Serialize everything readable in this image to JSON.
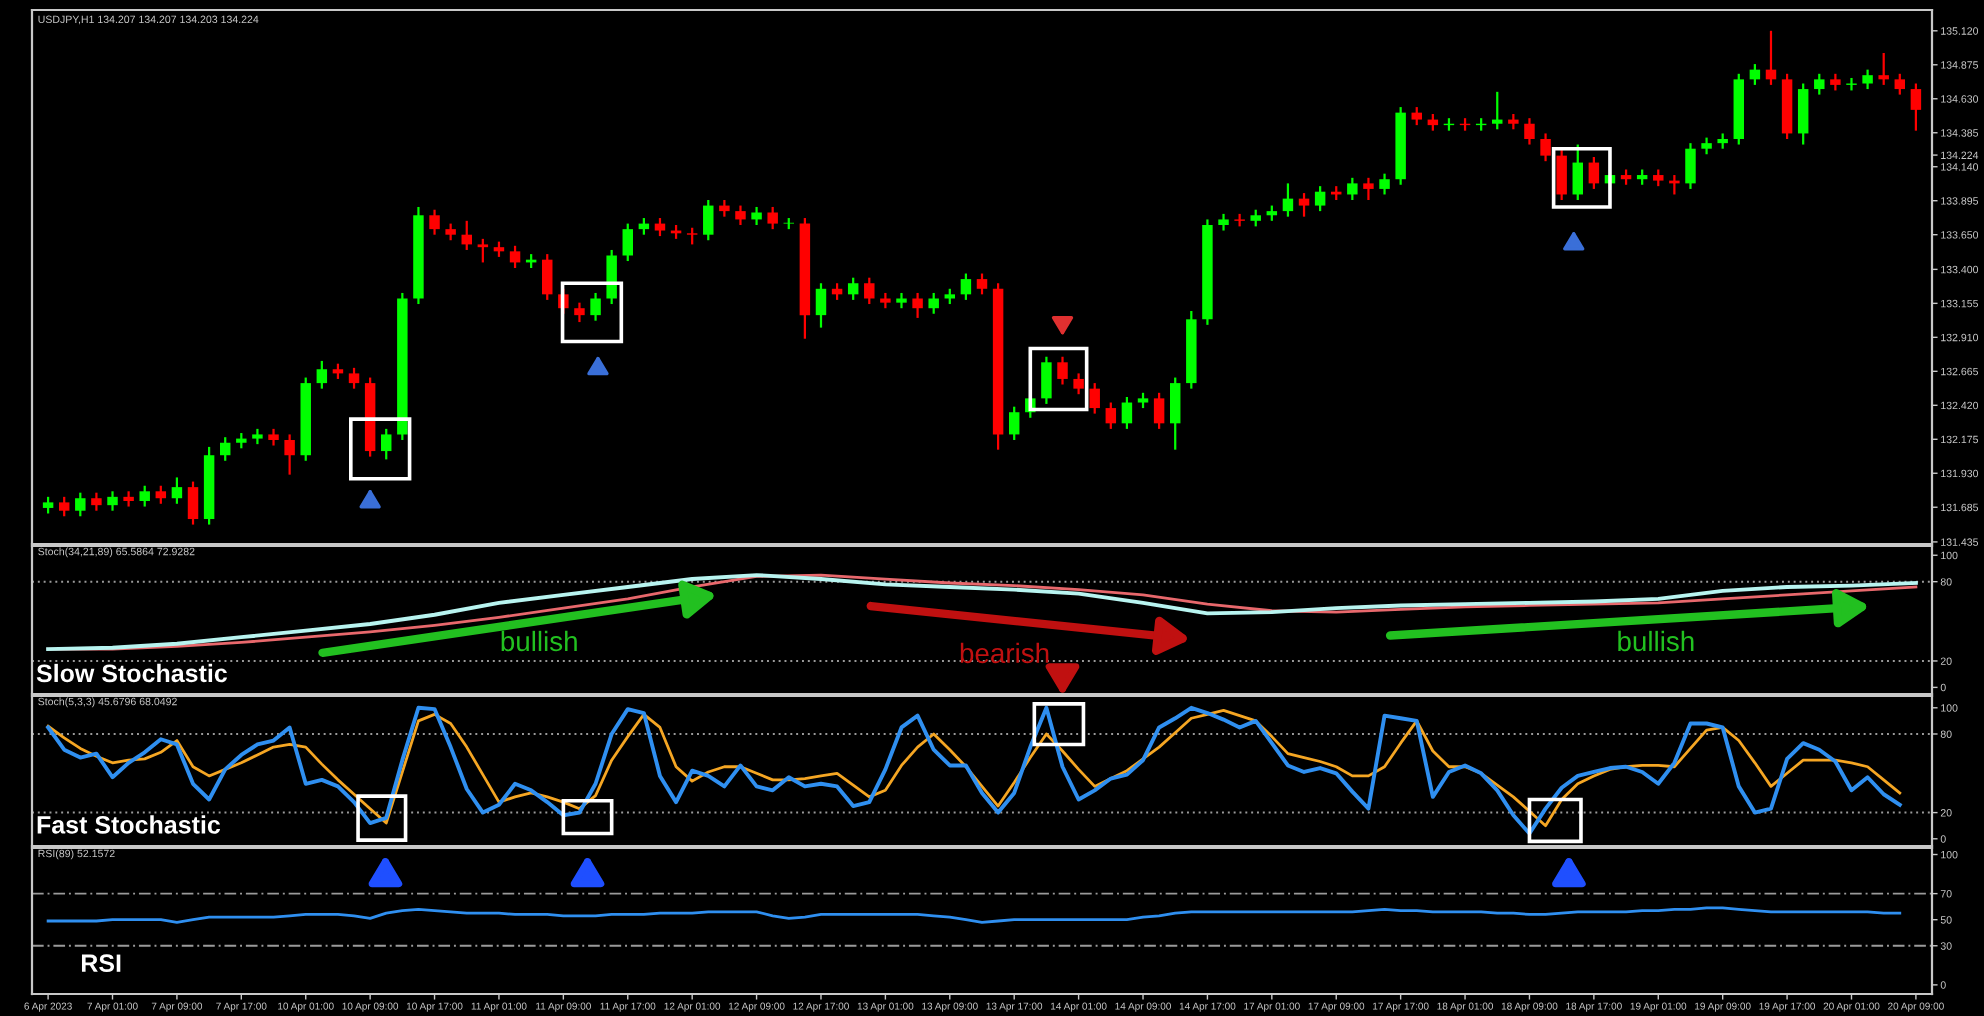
{
  "chart_data": [
    {
      "type": "candlestick",
      "title": "USDJPY,H1 134.207 134.207 134.203 134.224",
      "tick_labels": "y",
      "ylim": [
        131.42,
        135.27
      ],
      "yticks": [
        {
          "value": 135.12,
          "label": "135.120"
        },
        {
          "value": 134.875,
          "label": "134.875"
        },
        {
          "value": 134.63,
          "label": "134.630"
        },
        {
          "value": 134.385,
          "label": "134.385"
        },
        {
          "value": 134.224,
          "label": "134.224"
        },
        {
          "value": 134.14,
          "label": "134.140"
        },
        {
          "value": 133.895,
          "label": "133.895"
        },
        {
          "value": 133.65,
          "label": "133.650"
        },
        {
          "value": 133.4,
          "label": "133.400"
        },
        {
          "value": 133.155,
          "label": "133.155"
        },
        {
          "value": 132.91,
          "label": "132.910"
        },
        {
          "value": 132.665,
          "label": "132.665"
        },
        {
          "value": 132.42,
          "label": "132.420"
        },
        {
          "value": 132.175,
          "label": "132.175"
        },
        {
          "value": 131.93,
          "label": "131.930"
        },
        {
          "value": 131.685,
          "label": "131.685"
        },
        {
          "value": 131.435,
          "label": "131.435"
        }
      ],
      "categories": [
        null,
        null,
        null,
        null,
        null,
        null,
        null,
        null,
        null,
        null,
        null,
        null,
        null,
        null,
        null,
        null,
        null,
        null,
        null,
        null,
        null,
        null,
        null,
        null,
        null,
        null,
        null,
        null,
        null,
        null,
        null,
        null,
        null,
        null,
        null,
        null,
        null,
        null,
        null,
        null,
        null,
        null,
        null,
        null,
        null,
        null,
        null,
        null,
        null,
        null,
        null,
        null,
        null,
        null,
        null,
        null,
        null,
        null,
        null,
        null,
        null,
        null,
        null,
        null,
        null,
        null,
        null,
        null,
        null,
        null,
        null,
        null,
        null,
        null,
        null,
        null,
        null,
        null,
        null,
        null,
        null,
        null,
        null,
        null,
        null,
        null,
        null,
        null,
        null,
        null,
        null,
        null,
        null,
        null,
        null,
        null,
        null,
        null,
        null,
        null,
        null,
        null,
        null,
        null,
        null,
        null,
        null,
        null,
        null,
        null,
        null,
        null,
        null,
        null,
        null,
        null,
        null
      ],
      "ohlc": [
        [
          131.68,
          131.76,
          131.64,
          131.72
        ],
        [
          131.72,
          131.76,
          131.62,
          131.66
        ],
        [
          131.66,
          131.79,
          131.62,
          131.75
        ],
        [
          131.75,
          131.79,
          131.66,
          131.7
        ],
        [
          131.7,
          131.8,
          131.66,
          131.76
        ],
        [
          131.76,
          131.8,
          131.69,
          131.73
        ],
        [
          131.73,
          131.84,
          131.69,
          131.8
        ],
        [
          131.8,
          131.84,
          131.71,
          131.75
        ],
        [
          131.75,
          131.9,
          131.71,
          131.83
        ],
        [
          131.83,
          131.87,
          131.56,
          131.6
        ],
        [
          131.6,
          132.12,
          131.56,
          132.06
        ],
        [
          132.06,
          132.19,
          132.02,
          132.15
        ],
        [
          132.15,
          132.22,
          132.11,
          132.18
        ],
        [
          132.18,
          132.25,
          132.14,
          132.21
        ],
        [
          132.21,
          132.25,
          132.13,
          132.17
        ],
        [
          132.17,
          132.21,
          131.92,
          132.06
        ],
        [
          132.06,
          132.62,
          132.02,
          132.58
        ],
        [
          132.58,
          132.74,
          132.54,
          132.68
        ],
        [
          132.68,
          132.72,
          132.61,
          132.65
        ],
        [
          132.65,
          132.69,
          132.54,
          132.58
        ],
        [
          132.58,
          132.62,
          132.05,
          132.09
        ],
        [
          132.09,
          132.25,
          132.03,
          132.21
        ],
        [
          132.21,
          133.23,
          132.17,
          133.19
        ],
        [
          133.19,
          133.85,
          133.15,
          133.79
        ],
        [
          133.79,
          133.83,
          133.65,
          133.69
        ],
        [
          133.69,
          133.73,
          133.61,
          133.65
        ],
        [
          133.65,
          133.75,
          133.54,
          133.58
        ],
        [
          133.58,
          133.62,
          133.45,
          133.56
        ],
        [
          133.56,
          133.6,
          133.49,
          133.53
        ],
        [
          133.53,
          133.57,
          133.41,
          133.45
        ],
        [
          133.45,
          133.51,
          133.41,
          133.47
        ],
        [
          133.47,
          133.51,
          133.18,
          133.22
        ],
        [
          133.22,
          133.26,
          133.08,
          133.12
        ],
        [
          133.12,
          133.16,
          133.02,
          133.07
        ],
        [
          133.07,
          133.23,
          133.03,
          133.19
        ],
        [
          133.19,
          133.54,
          133.15,
          133.5
        ],
        [
          133.5,
          133.73,
          133.46,
          133.69
        ],
        [
          133.69,
          133.77,
          133.65,
          133.73
        ],
        [
          133.73,
          133.77,
          133.64,
          133.68
        ],
        [
          133.68,
          133.72,
          133.62,
          133.66
        ],
        [
          133.66,
          133.7,
          133.58,
          133.65
        ],
        [
          133.65,
          133.9,
          133.61,
          133.86
        ],
        [
          133.86,
          133.9,
          133.78,
          133.82
        ],
        [
          133.82,
          133.86,
          133.72,
          133.76
        ],
        [
          133.76,
          133.85,
          133.72,
          133.81
        ],
        [
          133.81,
          133.85,
          133.69,
          133.73
        ],
        [
          133.73,
          133.77,
          133.69,
          133.73
        ],
        [
          133.73,
          133.77,
          132.9,
          133.07
        ],
        [
          133.07,
          133.3,
          132.98,
          133.26
        ],
        [
          133.26,
          133.3,
          133.18,
          133.22
        ],
        [
          133.22,
          133.34,
          133.18,
          133.3
        ],
        [
          133.3,
          133.34,
          133.15,
          133.19
        ],
        [
          133.19,
          133.23,
          133.12,
          133.16
        ],
        [
          133.16,
          133.23,
          133.12,
          133.19
        ],
        [
          133.19,
          133.23,
          133.05,
          133.12
        ],
        [
          133.12,
          133.23,
          133.08,
          133.19
        ],
        [
          133.19,
          133.26,
          133.15,
          133.22
        ],
        [
          133.22,
          133.37,
          133.18,
          133.33
        ],
        [
          133.33,
          133.37,
          133.22,
          133.26
        ],
        [
          133.26,
          133.3,
          132.1,
          132.21
        ],
        [
          132.21,
          132.41,
          132.17,
          132.37
        ],
        [
          132.37,
          132.51,
          132.33,
          132.47
        ],
        [
          132.47,
          132.77,
          132.43,
          132.73
        ],
        [
          132.73,
          132.77,
          132.57,
          132.61
        ],
        [
          132.61,
          132.65,
          132.5,
          132.54
        ],
        [
          132.54,
          132.58,
          132.36,
          132.4
        ],
        [
          132.4,
          132.44,
          132.25,
          132.29
        ],
        [
          132.29,
          132.48,
          132.25,
          132.44
        ],
        [
          132.44,
          132.51,
          132.4,
          132.47
        ],
        [
          132.47,
          132.51,
          132.25,
          132.29
        ],
        [
          132.29,
          132.62,
          132.1,
          132.58
        ],
        [
          132.58,
          133.1,
          132.54,
          133.04
        ],
        [
          133.04,
          133.76,
          133.0,
          133.72
        ],
        [
          133.72,
          133.8,
          133.68,
          133.76
        ],
        [
          133.76,
          133.8,
          133.71,
          133.75
        ],
        [
          133.75,
          133.83,
          133.71,
          133.79
        ],
        [
          133.79,
          133.86,
          133.75,
          133.82
        ],
        [
          133.82,
          134.02,
          133.78,
          133.91
        ],
        [
          133.91,
          133.95,
          133.78,
          133.86
        ],
        [
          133.86,
          134.0,
          133.82,
          133.96
        ],
        [
          133.96,
          134.0,
          133.9,
          133.94
        ],
        [
          133.94,
          134.06,
          133.9,
          134.02
        ],
        [
          134.02,
          134.06,
          133.9,
          133.98
        ],
        [
          133.98,
          134.09,
          133.94,
          134.05
        ],
        [
          134.05,
          134.57,
          134.01,
          134.53
        ],
        [
          134.53,
          134.57,
          134.44,
          134.48
        ],
        [
          134.48,
          134.52,
          134.4,
          134.44
        ],
        [
          134.44,
          134.49,
          134.4,
          134.45
        ],
        [
          134.45,
          134.49,
          134.4,
          134.44
        ],
        [
          134.44,
          134.49,
          134.4,
          134.45
        ],
        [
          134.45,
          134.68,
          134.41,
          134.48
        ],
        [
          134.48,
          134.52,
          134.41,
          134.45
        ],
        [
          134.45,
          134.49,
          134.3,
          134.34
        ],
        [
          134.34,
          134.38,
          134.18,
          134.22
        ],
        [
          134.22,
          134.26,
          133.9,
          133.94
        ],
        [
          133.94,
          134.3,
          133.9,
          134.17
        ],
        [
          134.17,
          134.21,
          133.98,
          134.02
        ],
        [
          134.02,
          134.12,
          133.98,
          134.08
        ],
        [
          134.08,
          134.12,
          134.01,
          134.05
        ],
        [
          134.05,
          134.12,
          134.01,
          134.08
        ],
        [
          134.08,
          134.12,
          134.0,
          134.04
        ],
        [
          134.04,
          134.08,
          133.94,
          134.02
        ],
        [
          134.02,
          134.31,
          133.98,
          134.27
        ],
        [
          134.27,
          134.35,
          134.23,
          134.31
        ],
        [
          134.31,
          134.38,
          134.27,
          134.34
        ],
        [
          134.34,
          134.81,
          134.3,
          134.77
        ],
        [
          134.77,
          134.88,
          134.73,
          134.84
        ],
        [
          134.84,
          135.12,
          134.73,
          134.77
        ],
        [
          134.77,
          134.81,
          134.34,
          134.38
        ],
        [
          134.38,
          134.74,
          134.3,
          134.7
        ],
        [
          134.7,
          134.81,
          134.66,
          134.77
        ],
        [
          134.77,
          134.81,
          134.69,
          134.73
        ],
        [
          134.73,
          134.78,
          134.69,
          134.74
        ],
        [
          134.74,
          134.84,
          134.7,
          134.8
        ],
        [
          134.8,
          134.96,
          134.73,
          134.77
        ],
        [
          134.77,
          134.81,
          134.66,
          134.7
        ],
        [
          134.7,
          134.74,
          134.4,
          134.55
        ]
      ]
    },
    {
      "type": "line",
      "title": "Stoch(34,21,89) 65.5864 72.9282",
      "subtitle": "Slow Stochastic",
      "annotations": [
        "bullish",
        "bearish",
        "bullish"
      ],
      "tick_labels": "y",
      "ylim": [
        -5,
        107
      ],
      "yticks": [
        100,
        80,
        20,
        0
      ],
      "categories": [
        null,
        null,
        null,
        null,
        null,
        null,
        null,
        null,
        null,
        null,
        null,
        null,
        null,
        null,
        null,
        null,
        null,
        null,
        null,
        null,
        null,
        null,
        null,
        null,
        null,
        null,
        null,
        null,
        null,
        null
      ],
      "ref_lines": [
        {
          "axis": "y",
          "value": 80,
          "color": "#9a9a9a",
          "line_style": "dotted"
        },
        {
          "axis": "y",
          "value": 20,
          "color": "#9a9a9a",
          "line_style": "dotted"
        }
      ],
      "series": [
        {
          "color": "#b8f4f0",
          "values": [
            29,
            30,
            33,
            38,
            43,
            48,
            55,
            64,
            70,
            76,
            82,
            85,
            82,
            78,
            76,
            74,
            71,
            64,
            56,
            57,
            60,
            62,
            63,
            64,
            65,
            67,
            73,
            76,
            77,
            79
          ]
        },
        {
          "color": "#e8686c",
          "values": [
            29,
            29,
            31,
            34,
            38,
            42,
            47,
            53,
            60,
            67,
            76,
            84,
            85,
            82,
            79,
            77,
            74,
            70,
            63,
            58,
            57,
            59,
            61,
            62,
            63,
            64,
            67,
            70,
            73,
            76
          ]
        }
      ]
    },
    {
      "type": "line",
      "title": "Stoch(5,3,3) 45.6796 68.0492",
      "subtitle": "Fast Stochastic",
      "tick_labels": "y",
      "ylim": [
        -5.5,
        109
      ],
      "yticks": [
        100,
        80,
        20,
        0
      ],
      "categories": [
        null,
        null,
        null,
        null,
        null,
        null,
        null,
        null,
        null,
        null,
        null,
        null,
        null,
        null,
        null,
        null,
        null,
        null,
        null,
        null,
        null,
        null,
        null,
        null,
        null,
        null,
        null,
        null,
        null,
        null,
        null,
        null,
        null,
        null,
        null,
        null,
        null,
        null,
        null,
        null,
        null,
        null,
        null,
        null,
        null,
        null,
        null,
        null,
        null,
        null,
        null,
        null,
        null,
        null,
        null,
        null,
        null,
        null,
        null,
        null,
        null,
        null,
        null,
        null,
        null,
        null,
        null,
        null,
        null,
        null,
        null,
        null,
        null,
        null,
        null,
        null,
        null,
        null,
        null,
        null,
        null,
        null,
        null,
        null,
        null,
        null,
        null,
        null,
        null,
        null,
        null,
        null,
        null,
        null,
        null,
        null,
        null,
        null,
        null,
        null,
        null,
        null,
        null,
        null,
        null,
        null,
        null,
        null,
        null,
        null,
        null,
        null,
        null,
        null,
        null,
        null,
        null
      ],
      "ref_lines": [
        {
          "axis": "y",
          "value": 80,
          "color": "#9a9a9a",
          "line_style": "dotted"
        },
        {
          "axis": "y",
          "value": 20,
          "color": "#9a9a9a",
          "line_style": "dotted"
        }
      ],
      "series": [
        {
          "color": "#2f8ff0",
          "values": [
            85,
            68,
            62,
            65,
            47,
            58,
            66,
            76,
            72,
            42,
            30,
            53,
            64,
            72,
            75,
            85,
            42,
            45,
            40,
            28,
            12,
            16,
            60,
            100,
            99,
            70,
            38,
            20,
            26,
            42,
            37,
            28,
            18,
            20,
            42,
            80,
            99,
            96,
            48,
            28,
            52,
            48,
            40,
            56,
            40,
            37,
            47,
            40,
            42,
            40,
            25,
            28,
            53,
            85,
            94,
            68,
            56,
            56,
            35,
            20,
            35,
            70,
            100,
            55,
            30,
            37,
            46,
            49,
            60,
            85,
            92,
            100,
            96,
            91,
            85,
            90,
            73,
            56,
            51,
            54,
            50,
            36,
            23,
            94,
            92,
            90,
            32,
            51,
            56,
            50,
            37,
            18,
            4,
            23,
            39,
            48,
            51,
            54,
            55,
            51,
            42,
            58,
            88,
            88,
            85,
            40,
            20,
            23,
            61,
            73,
            68,
            59,
            37,
            47,
            34,
            26,
            null
          ]
        },
        {
          "color": "#f5a623",
          "values": [
            86,
            77,
            69,
            63,
            58,
            60,
            61,
            66,
            75,
            55,
            48,
            53,
            58,
            64,
            70,
            72,
            70,
            57,
            45,
            34,
            23,
            12,
            51,
            90,
            95,
            88,
            70,
            49,
            28,
            32,
            35,
            32,
            28,
            23,
            33,
            60,
            78,
            95,
            85,
            55,
            44,
            51,
            55,
            55,
            50,
            45,
            45,
            46,
            48,
            50,
            41,
            32,
            37,
            56,
            70,
            80,
            68,
            55,
            40,
            25,
            43,
            62,
            80,
            67,
            53,
            40,
            46,
            52,
            61,
            70,
            81,
            92,
            95,
            98,
            94,
            90,
            78,
            65,
            62,
            59,
            55,
            48,
            48,
            55,
            73,
            90,
            67,
            55,
            55,
            50,
            41,
            32,
            21,
            10,
            30,
            42,
            48,
            53,
            55,
            56,
            56,
            55,
            69,
            83,
            85,
            75,
            58,
            40,
            50,
            60,
            60,
            60,
            58,
            55,
            45,
            35,
            null
          ]
        }
      ]
    },
    {
      "type": "line",
      "title": "RSI(89) 52.1572",
      "subtitle": "RSI",
      "ylim": [
        -7,
        105
      ],
      "yticks": [
        100,
        70,
        50,
        30,
        0
      ],
      "categories": [
        "6 Apr 2023",
        null,
        null,
        null,
        "7 Apr 01:00",
        null,
        null,
        null,
        "7 Apr 09:00",
        null,
        null,
        null,
        "7 Apr 17:00",
        null,
        null,
        null,
        "10 Apr 01:00",
        null,
        null,
        null,
        "10 Apr 09:00",
        null,
        null,
        null,
        "10 Apr 17:00",
        null,
        null,
        null,
        "11 Apr 01:00",
        null,
        null,
        null,
        "11 Apr 09:00",
        null,
        null,
        null,
        "11 Apr 17:00",
        null,
        null,
        null,
        "12 Apr 01:00",
        null,
        null,
        null,
        "12 Apr 09:00",
        null,
        null,
        null,
        "12 Apr 17:00",
        null,
        null,
        null,
        "13 Apr 01:00",
        null,
        null,
        null,
        "13 Apr 09:00",
        null,
        null,
        null,
        "13 Apr 17:00",
        null,
        null,
        null,
        "14 Apr 01:00",
        null,
        null,
        null,
        "14 Apr 09:00",
        null,
        null,
        null,
        "14 Apr 17:00",
        null,
        null,
        null,
        "17 Apr 01:00",
        null,
        null,
        null,
        "17 Apr 09:00",
        null,
        null,
        null,
        "17 Apr 17:00",
        null,
        null,
        null,
        "18 Apr 01:00",
        null,
        null,
        null,
        "18 Apr 09:00",
        null,
        null,
        null,
        "18 Apr 17:00",
        null,
        null,
        null,
        "19 Apr 01:00",
        null,
        null,
        null,
        "19 Apr 09:00",
        null,
        null,
        null,
        "19 Apr 17:00",
        null,
        null,
        null,
        "20 Apr 01:00",
        null,
        null,
        null,
        "20 Apr 09:00"
      ],
      "ref_lines": [
        {
          "axis": "y",
          "value": 70,
          "color": "#9a9a9a",
          "line_style": "dashed"
        },
        {
          "axis": "y",
          "value": 30,
          "color": "#9a9a9a",
          "line_style": "dashed"
        }
      ],
      "series": [
        {
          "color": "#2f8ff0",
          "values": [
            49,
            49,
            49,
            49,
            50,
            50,
            50,
            50,
            48,
            50,
            52,
            52,
            52,
            52,
            52,
            53,
            54,
            54,
            54,
            53,
            51,
            55,
            57,
            58,
            57,
            56,
            55,
            55,
            55,
            54,
            54,
            54,
            53,
            53,
            53,
            54,
            54,
            54,
            55,
            55,
            55,
            56,
            56,
            56,
            56,
            53,
            51,
            52,
            54,
            54,
            54,
            54,
            54,
            54,
            54,
            53,
            52,
            50,
            48,
            49,
            50,
            50,
            50,
            50,
            50,
            50,
            50,
            50,
            52,
            53,
            55,
            56,
            56,
            56,
            56,
            56,
            56,
            56,
            56,
            56,
            56,
            56,
            57,
            58,
            57,
            57,
            56,
            56,
            56,
            56,
            55,
            55,
            54,
            54,
            55,
            56,
            56,
            56,
            56,
            57,
            57,
            58,
            58,
            59,
            59,
            58,
            57,
            56,
            56,
            56,
            56,
            56,
            56,
            56,
            55,
            55,
            null
          ]
        }
      ]
    }
  ]
}
